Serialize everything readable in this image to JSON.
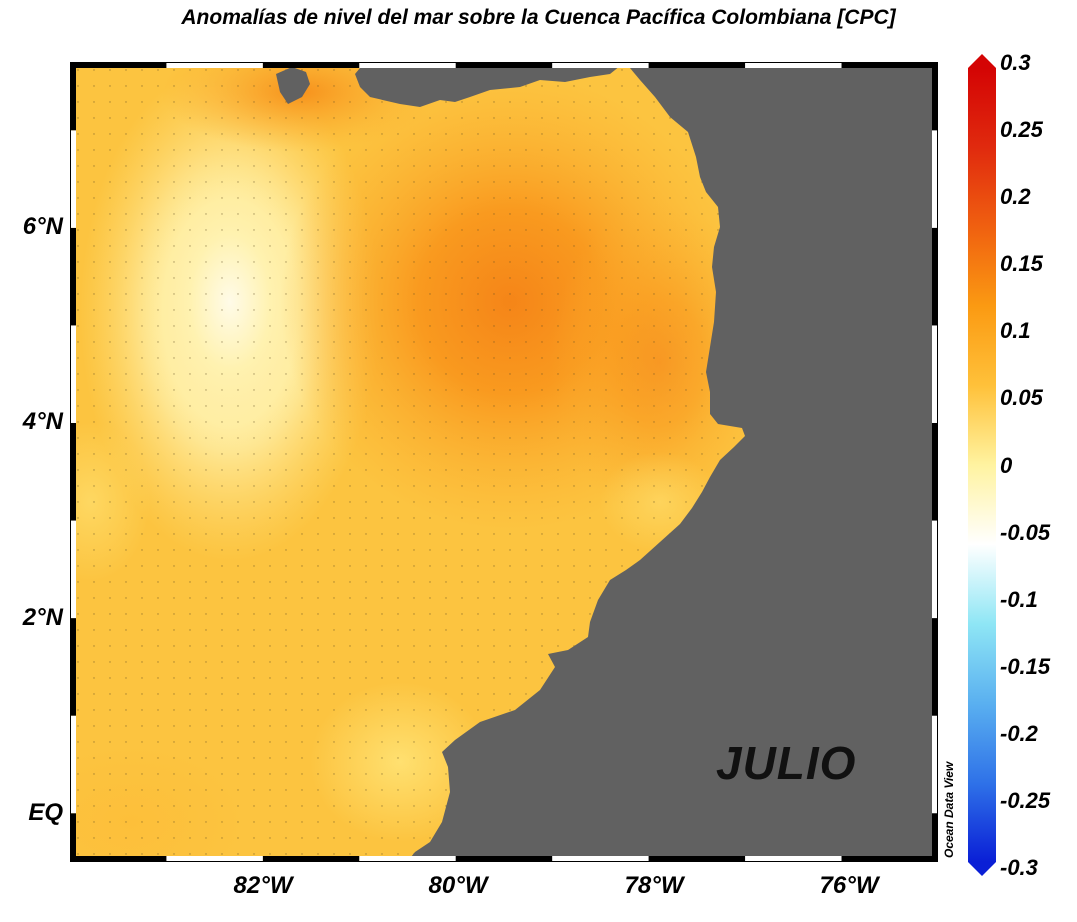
{
  "title": "Anomalías de nivel del mar sobre la Cuenca Pacífica Colombiana [CPC]",
  "month": "JULIO",
  "credit": "Ocean Data View",
  "axes": {
    "x_ticks": [
      "82°W",
      "80°W",
      "78°W",
      "76°W"
    ],
    "y_ticks": [
      "6°N",
      "4°N",
      "2°N",
      "EQ"
    ],
    "lon_range": [
      -84,
      -75
    ],
    "lat_range": [
      -0.5,
      7.7
    ]
  },
  "colorbar": {
    "ticks": [
      "0.3",
      "0.25",
      "0.2",
      "0.15",
      "0.1",
      "0.05",
      "0",
      "-0.05",
      "-0.1",
      "-0.15",
      "-0.2",
      "-0.25",
      "-0.3"
    ],
    "range": [
      -0.3,
      0.3
    ],
    "colors": [
      "#0a1fd6",
      "#2f72e8",
      "#5ab0f0",
      "#8fe6f5",
      "#ffffff",
      "#fff3a0",
      "#ffc13a",
      "#fb9a12",
      "#f06010",
      "#e02a0e",
      "#d40404"
    ]
  },
  "colors": {
    "land": "#616161",
    "frame_dark": "#000000",
    "frame_light": "#ffffff"
  }
}
